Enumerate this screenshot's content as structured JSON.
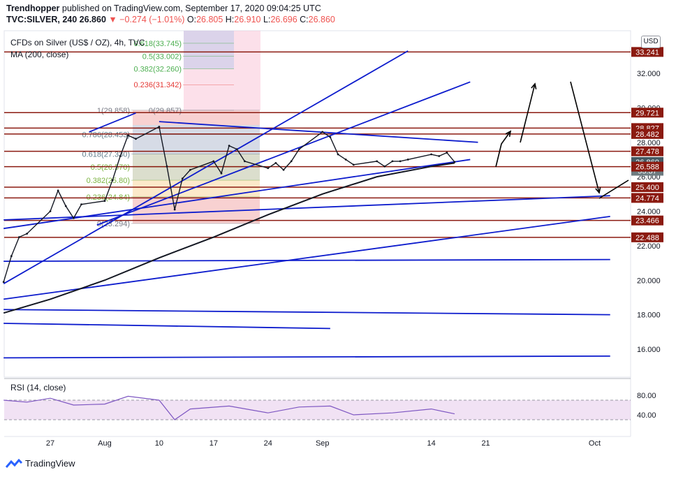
{
  "header": {
    "publisher": "Trendhopper",
    "published_text": "published on TradingView.com, September 17, 2020 09:04:25 UTC",
    "symbol": "TVC:SILVER, 240",
    "last": "26.860",
    "change": "−0.274 (−1.01%)",
    "ohlc": {
      "O": "26.805",
      "H": "26.910",
      "L": "26.696",
      "C": "26.860"
    }
  },
  "legend": {
    "title": "CFDs on Silver (US$ / OZ), 4h, TVC",
    "ma": "MA (200, close)",
    "rsi": "RSI (14, close)"
  },
  "currency_button": "USD",
  "footer": {
    "brand": "TradingView"
  },
  "colors": {
    "trendline": "#0d1ccd",
    "horizontal_level": "#8b1a10",
    "ma": "#131722",
    "price_up": "#131722",
    "fib_red": "#e53935",
    "fib_green": "#4caf50",
    "rsi_band": "#e1bee7"
  },
  "chart_data": {
    "type": "line",
    "title": "CFDs on Silver (US$ / OZ), 4h, TVC",
    "y_axis_ticks": [
      "16.000",
      "18.000",
      "20.000",
      "22.000",
      "24.000",
      "26.000",
      "28.000",
      "30.000",
      "32.000"
    ],
    "x_axis_ticks": [
      "27",
      "Aug",
      "10",
      "17",
      "24",
      "Sep",
      "14",
      "21",
      "Oct"
    ],
    "price_labels": [
      {
        "label": "33.241",
        "value": 33.241,
        "style": "level"
      },
      {
        "label": "29.721",
        "value": 29.721,
        "style": "level"
      },
      {
        "label": "28.827",
        "value": 28.827,
        "style": "level"
      },
      {
        "label": "28.482",
        "value": 28.482,
        "style": "level"
      },
      {
        "label": "27.478",
        "value": 27.478,
        "style": "level"
      },
      {
        "label": "26.860",
        "value": 26.86,
        "style": "current"
      },
      {
        "label": "55:37",
        "value": 26.35,
        "style": "timer"
      },
      {
        "label": "26.588",
        "value": 26.588,
        "style": "level"
      },
      {
        "label": "25.400",
        "value": 25.4,
        "style": "level"
      },
      {
        "label": "24.774",
        "value": 24.774,
        "style": "level"
      },
      {
        "label": "23.466",
        "value": 23.466,
        "style": "level"
      },
      {
        "label": "22.488",
        "value": 22.488,
        "style": "level"
      }
    ],
    "horizontal_levels": [
      33.241,
      29.721,
      28.827,
      28.482,
      27.478,
      26.588,
      25.4,
      24.774,
      23.466,
      22.488
    ],
    "fibonacci": [
      {
        "label": "0.618(33.745)",
        "value": 33.745
      },
      {
        "label": "0.5(33.002)",
        "value": 33.002
      },
      {
        "label": "0.382(32.260)",
        "value": 32.26
      },
      {
        "label": "0.236(31.342)",
        "value": 31.342
      },
      {
        "label": "0(29.857)",
        "value": 29.857
      },
      {
        "label": "1(29.858)",
        "value": 29.858
      },
      {
        "label": "0.786(28.453)",
        "value": 28.453
      },
      {
        "label": "0.618(27.330)",
        "value": 27.33
      },
      {
        "label": "0.5(26.570)",
        "value": 26.57
      },
      {
        "label": "0.382(25.80)",
        "value": 25.8
      },
      {
        "label": "0.236(24.84)",
        "value": 24.84
      },
      {
        "label": "0(23.294)",
        "value": 23.294
      }
    ],
    "price_series": [
      {
        "date": "Jul 21",
        "value": 19.9
      },
      {
        "date": "Jul 22",
        "value": 21.4
      },
      {
        "date": "Jul 23",
        "value": 22.5
      },
      {
        "date": "Jul 24",
        "value": 22.7
      },
      {
        "date": "Jul 27",
        "value": 24.0
      },
      {
        "date": "Jul 28",
        "value": 25.2
      },
      {
        "date": "Jul 29",
        "value": 24.3
      },
      {
        "date": "Jul 30",
        "value": 23.6
      },
      {
        "date": "Jul 31",
        "value": 24.4
      },
      {
        "date": "Aug 3",
        "value": 24.6
      },
      {
        "date": "Aug 4",
        "value": 25.8
      },
      {
        "date": "Aug 5",
        "value": 27.2
      },
      {
        "date": "Aug 6",
        "value": 28.4
      },
      {
        "date": "Aug 7",
        "value": 28.2
      },
      {
        "date": "Aug 10",
        "value": 28.9
      },
      {
        "date": "Aug 11",
        "value": 26.6
      },
      {
        "date": "Aug 12",
        "value": 24.1
      },
      {
        "date": "Aug 13",
        "value": 25.9
      },
      {
        "date": "Aug 14",
        "value": 26.4
      },
      {
        "date": "Aug 17",
        "value": 26.9
      },
      {
        "date": "Aug 18",
        "value": 26.2
      },
      {
        "date": "Aug 19",
        "value": 27.8
      },
      {
        "date": "Aug 20",
        "value": 27.6
      },
      {
        "date": "Aug 21",
        "value": 26.9
      },
      {
        "date": "Aug 24",
        "value": 26.5
      },
      {
        "date": "Aug 25",
        "value": 26.8
      },
      {
        "date": "Aug 26",
        "value": 26.4
      },
      {
        "date": "Aug 27",
        "value": 26.9
      },
      {
        "date": "Aug 28",
        "value": 27.6
      },
      {
        "date": "Aug 31",
        "value": 28.6
      },
      {
        "date": "Sep 1",
        "value": 28.3
      },
      {
        "date": "Sep 2",
        "value": 27.3
      },
      {
        "date": "Sep 3",
        "value": 27.0
      },
      {
        "date": "Sep 4",
        "value": 26.7
      },
      {
        "date": "Sep 7",
        "value": 26.9
      },
      {
        "date": "Sep 8",
        "value": 26.6
      },
      {
        "date": "Sep 9",
        "value": 26.9
      },
      {
        "date": "Sep 10",
        "value": 26.9
      },
      {
        "date": "Sep 11",
        "value": 27.0
      },
      {
        "date": "Sep 14",
        "value": 27.3
      },
      {
        "date": "Sep 15",
        "value": 27.2
      },
      {
        "date": "Sep 16",
        "value": 27.4
      },
      {
        "date": "Sep 17",
        "value": 26.86
      }
    ],
    "ma_series": [
      {
        "date": "Jul 21",
        "value": 18.1
      },
      {
        "date": "Jul 27",
        "value": 18.9
      },
      {
        "date": "Aug 3",
        "value": 20.0
      },
      {
        "date": "Aug 10",
        "value": 21.3
      },
      {
        "date": "Aug 17",
        "value": 22.5
      },
      {
        "date": "Aug 24",
        "value": 23.8
      },
      {
        "date": "Aug 31",
        "value": 25.0
      },
      {
        "date": "Sep 7",
        "value": 26.0
      },
      {
        "date": "Sep 14",
        "value": 26.6
      },
      {
        "date": "Sep 17",
        "value": 26.8
      }
    ],
    "rsi": {
      "upper": 70,
      "lower": 30,
      "ticks": [
        "80.00",
        "40.00"
      ],
      "values": [
        {
          "date": "Jul 21",
          "value": 70
        },
        {
          "date": "Jul 24",
          "value": 66
        },
        {
          "date": "Jul 27",
          "value": 74
        },
        {
          "date": "Jul 30",
          "value": 60
        },
        {
          "date": "Aug 3",
          "value": 62
        },
        {
          "date": "Aug 6",
          "value": 78
        },
        {
          "date": "Aug 10",
          "value": 70
        },
        {
          "date": "Aug 12",
          "value": 30
        },
        {
          "date": "Aug 14",
          "value": 52
        },
        {
          "date": "Aug 19",
          "value": 58
        },
        {
          "date": "Aug 24",
          "value": 44
        },
        {
          "date": "Aug 28",
          "value": 56
        },
        {
          "date": "Sep 1",
          "value": 58
        },
        {
          "date": "Sep 4",
          "value": 40
        },
        {
          "date": "Sep 9",
          "value": 44
        },
        {
          "date": "Sep 14",
          "value": 52
        },
        {
          "date": "Sep 17",
          "value": 42
        }
      ]
    }
  }
}
